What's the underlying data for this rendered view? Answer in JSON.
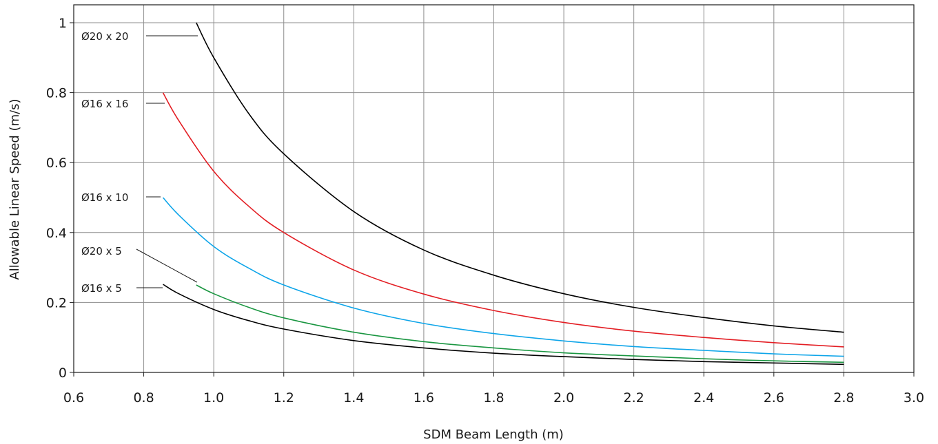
{
  "chart_data": {
    "type": "line",
    "title": "",
    "xlabel": "SDM Beam Length (m)",
    "ylabel": "Allowable Linear Speed (m/s)",
    "xlim": [
      0.6,
      3.0
    ],
    "ylim": [
      0,
      1.05
    ],
    "x_ticks": [
      "0.6",
      "0.8",
      "1.0",
      "1.2",
      "1.4",
      "1.6",
      "1.8",
      "2.0",
      "2.2",
      "2.4",
      "2.6",
      "2.8",
      "3.0"
    ],
    "y_ticks": [
      "0",
      "0.2",
      "0.4",
      "0.6",
      "0.8",
      "1"
    ],
    "grid": true,
    "legend": "inline-left",
    "series": [
      {
        "name": "Ø20 x 20",
        "color": "#000000",
        "x": [
          0.95,
          1.0,
          1.1,
          1.2,
          1.4,
          1.6,
          1.8,
          2.0,
          2.2,
          2.4,
          2.6,
          2.8
        ],
        "y": [
          1.0,
          0.9,
          0.74,
          0.625,
          0.46,
          0.35,
          0.278,
          0.225,
          0.186,
          0.157,
          0.133,
          0.115
        ]
      },
      {
        "name": "Ø16 x 16",
        "color": "#e31e24",
        "x": [
          0.855,
          0.9,
          1.0,
          1.1,
          1.2,
          1.4,
          1.6,
          1.8,
          2.0,
          2.2,
          2.4,
          2.6,
          2.8
        ],
        "y": [
          0.8,
          0.72,
          0.575,
          0.475,
          0.4,
          0.293,
          0.224,
          0.177,
          0.143,
          0.118,
          0.1,
          0.085,
          0.073
        ]
      },
      {
        "name": "Ø16 x 10",
        "color": "#0ea5e9",
        "x": [
          0.855,
          0.9,
          1.0,
          1.1,
          1.2,
          1.4,
          1.6,
          1.8,
          2.0,
          2.2,
          2.4,
          2.6,
          2.8
        ],
        "y": [
          0.5,
          0.45,
          0.36,
          0.298,
          0.25,
          0.184,
          0.14,
          0.111,
          0.09,
          0.074,
          0.063,
          0.053,
          0.046
        ]
      },
      {
        "name": "Ø20 x 5",
        "color": "#1a9641",
        "x": [
          0.95,
          1.0,
          1.1,
          1.2,
          1.4,
          1.6,
          1.8,
          2.0,
          2.2,
          2.4,
          2.6,
          2.8
        ],
        "y": [
          0.25,
          0.225,
          0.186,
          0.156,
          0.115,
          0.088,
          0.07,
          0.056,
          0.047,
          0.039,
          0.033,
          0.029
        ]
      },
      {
        "name": "Ø16 x 5",
        "color": "#000000",
        "x": [
          0.855,
          0.9,
          1.0,
          1.1,
          1.2,
          1.4,
          1.6,
          1.8,
          2.0,
          2.2,
          2.4,
          2.6,
          2.8
        ],
        "y": [
          0.252,
          0.225,
          0.18,
          0.148,
          0.124,
          0.091,
          0.07,
          0.055,
          0.045,
          0.037,
          0.031,
          0.027,
          0.023
        ]
      }
    ]
  }
}
